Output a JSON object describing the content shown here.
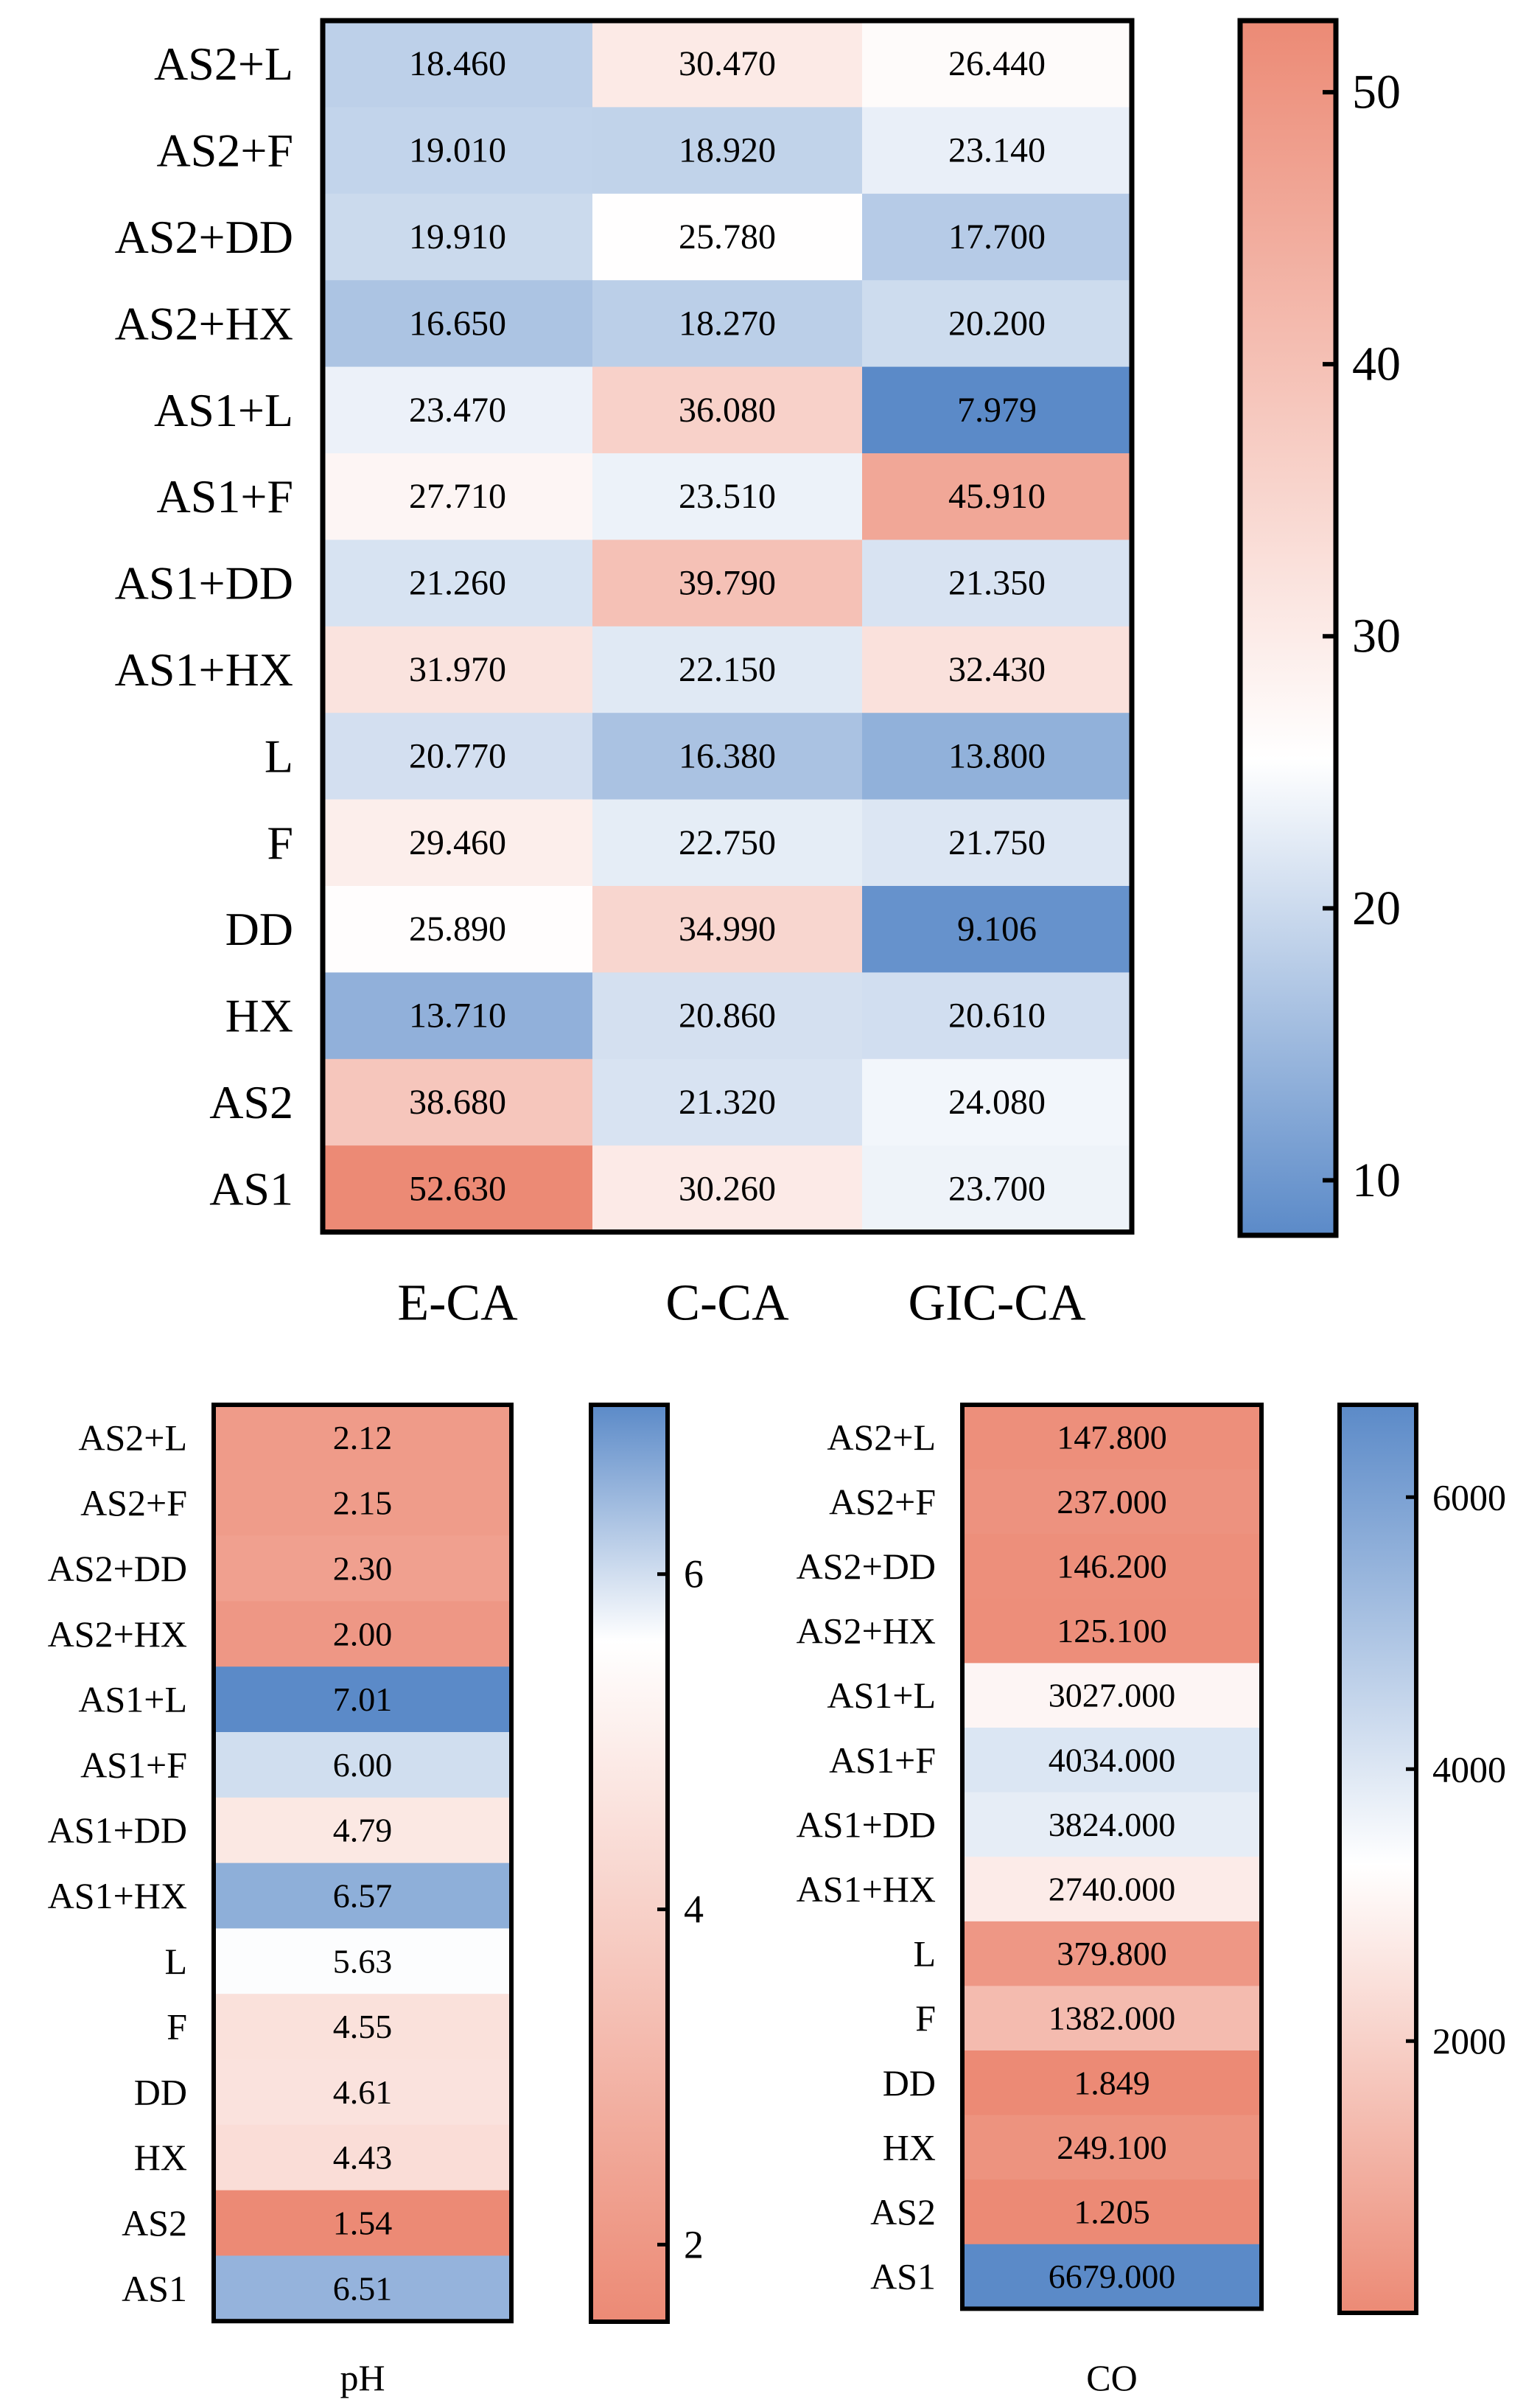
{
  "chart_data": [
    {
      "type": "heatmap",
      "title": "",
      "rows": [
        "AS2+L",
        "AS2+F",
        "AS2+DD",
        "AS2+HX",
        "AS1+L",
        "AS1+F",
        "AS1+DD",
        "AS1+HX",
        "L",
        "F",
        "DD",
        "HX",
        "AS2",
        "AS1"
      ],
      "columns": [
        "E-CA",
        "C-CA",
        "GIC-CA"
      ],
      "values": [
        [
          18.46,
          30.47,
          26.44
        ],
        [
          19.01,
          18.92,
          23.14
        ],
        [
          19.91,
          25.78,
          17.7
        ],
        [
          16.65,
          18.27,
          20.2
        ],
        [
          23.47,
          36.08,
          7.979
        ],
        [
          27.71,
          23.51,
          45.91
        ],
        [
          21.26,
          39.79,
          21.35
        ],
        [
          31.97,
          22.15,
          32.43
        ],
        [
          20.77,
          16.38,
          13.8
        ],
        [
          29.46,
          22.75,
          21.75
        ],
        [
          25.89,
          34.99,
          9.106
        ],
        [
          13.71,
          20.86,
          20.61
        ],
        [
          38.68,
          21.32,
          24.08
        ],
        [
          52.63,
          30.26,
          23.7
        ]
      ],
      "labels": [
        [
          "18.460",
          "30.470",
          "26.440"
        ],
        [
          "19.010",
          "18.920",
          "23.140"
        ],
        [
          "19.910",
          "25.780",
          "17.700"
        ],
        [
          "16.650",
          "18.270",
          "20.200"
        ],
        [
          "23.470",
          "36.080",
          "7.979"
        ],
        [
          "27.710",
          "23.510",
          "45.910"
        ],
        [
          "21.260",
          "39.790",
          "21.350"
        ],
        [
          "31.970",
          "22.150",
          "32.430"
        ],
        [
          "20.770",
          "16.380",
          "13.800"
        ],
        [
          "29.460",
          "22.750",
          "21.750"
        ],
        [
          "25.890",
          "34.990",
          "9.106"
        ],
        [
          "13.710",
          "20.860",
          "20.610"
        ],
        [
          "38.680",
          "21.320",
          "24.080"
        ],
        [
          "52.630",
          "30.260",
          "23.700"
        ]
      ],
      "xlabel": "",
      "colorbar": {
        "range": [
          7.979,
          52.63
        ],
        "ticks": [
          10,
          20,
          30,
          40,
          50
        ],
        "tick_labels": [
          "10",
          "20",
          "30",
          "40",
          "50"
        ],
        "low_color": "#5b8ac8",
        "mid_color": "#ffffff",
        "high_color": "#ec8a75",
        "mid_value": 25.5
      }
    },
    {
      "type": "heatmap",
      "title": "",
      "rows": [
        "AS2+L",
        "AS2+F",
        "AS2+DD",
        "AS2+HX",
        "AS1+L",
        "AS1+F",
        "AS1+DD",
        "AS1+HX",
        "L",
        "F",
        "DD",
        "HX",
        "AS2",
        "AS1"
      ],
      "columns": [],
      "values": [
        [
          2.12
        ],
        [
          2.15
        ],
        [
          2.3
        ],
        [
          2.0
        ],
        [
          7.01
        ],
        [
          6.0
        ],
        [
          4.79
        ],
        [
          6.57
        ],
        [
          5.63
        ],
        [
          4.55
        ],
        [
          4.61
        ],
        [
          4.43
        ],
        [
          1.54
        ],
        [
          6.51
        ]
      ],
      "labels": [
        [
          "2.12"
        ],
        [
          "2.15"
        ],
        [
          "2.30"
        ],
        [
          "2.00"
        ],
        [
          "7.01"
        ],
        [
          "6.00"
        ],
        [
          "4.79"
        ],
        [
          "6.57"
        ],
        [
          "5.63"
        ],
        [
          "4.55"
        ],
        [
          "4.61"
        ],
        [
          "4.43"
        ],
        [
          "1.54"
        ],
        [
          "6.51"
        ]
      ],
      "xlabel": "pH",
      "colorbar": {
        "range": [
          1.54,
          7.01
        ],
        "ticks": [
          2,
          4,
          6
        ],
        "tick_labels": [
          "2",
          "4",
          "6"
        ],
        "low_color": "#ec8a75",
        "mid_color": "#ffffff",
        "high_color": "#5b8ac8",
        "mid_value": 5.6
      }
    },
    {
      "type": "heatmap",
      "title": "",
      "rows": [
        "AS2+L",
        "AS2+F",
        "AS2+DD",
        "AS2+HX",
        "AS1+L",
        "AS1+F",
        "AS1+DD",
        "AS1+HX",
        "L",
        "F",
        "DD",
        "HX",
        "AS2",
        "AS1"
      ],
      "columns": [],
      "values": [
        [
          147.8
        ],
        [
          237.0
        ],
        [
          146.2
        ],
        [
          125.1
        ],
        [
          3027.0
        ],
        [
          4034.0
        ],
        [
          3824.0
        ],
        [
          2740.0
        ],
        [
          379.8
        ],
        [
          1382.0
        ],
        [
          1.849
        ],
        [
          249.1
        ],
        [
          1.205
        ],
        [
          6679.0
        ]
      ],
      "labels": [
        [
          "147.800"
        ],
        [
          "237.000"
        ],
        [
          "146.200"
        ],
        [
          "125.100"
        ],
        [
          "3027.000"
        ],
        [
          "4034.000"
        ],
        [
          "3824.000"
        ],
        [
          "2740.000"
        ],
        [
          "379.800"
        ],
        [
          "1382.000"
        ],
        [
          "1.849"
        ],
        [
          "249.100"
        ],
        [
          "1.205"
        ],
        [
          "6679.000"
        ]
      ],
      "xlabel": "CO",
      "colorbar": {
        "range": [
          1.205,
          6679
        ],
        "ticks": [
          2000,
          4000,
          6000
        ],
        "tick_labels": [
          "2000",
          "4000",
          "6000"
        ],
        "low_color": "#ec8a75",
        "mid_color": "#ffffff",
        "high_color": "#5b8ac8",
        "mid_value": 3300
      }
    }
  ]
}
